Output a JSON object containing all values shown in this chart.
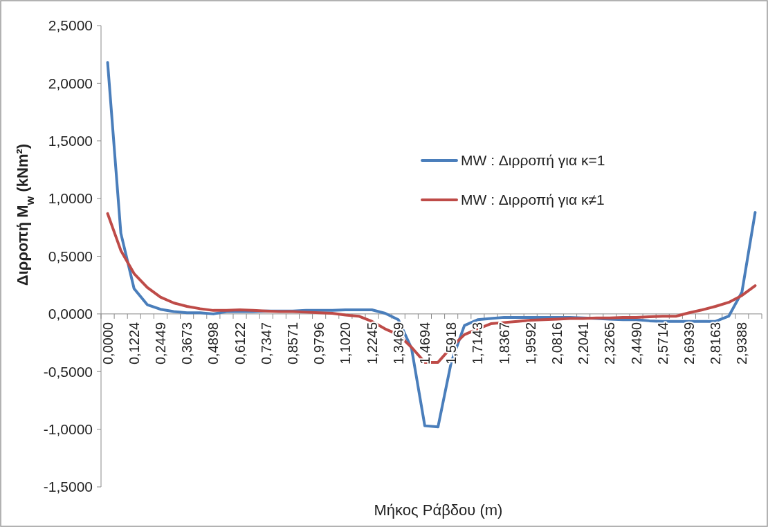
{
  "chart_data": {
    "type": "line",
    "xlabel": "Μήκος Ράβδου (m)",
    "ylabel": "Διρροπή M$_{w}$ (kNm²)",
    "categories": [
      "0,0000",
      null,
      "0,1224",
      null,
      "0,2449",
      null,
      "0,3673",
      null,
      "0,4898",
      null,
      "0,6122",
      null,
      "0,7347",
      null,
      "0,8571",
      null,
      "0,9796",
      null,
      "1,1020",
      null,
      "1,2245",
      null,
      "1,3469",
      null,
      "1,4694",
      null,
      "1,5918",
      null,
      "1,7143",
      null,
      "1,8367",
      null,
      "1,9592",
      null,
      "2,0816",
      null,
      "2,2041",
      null,
      "2,3265",
      null,
      "2,4490",
      null,
      "2,5714",
      null,
      "2,6939",
      null,
      "2,8163",
      null,
      "2,9388",
      null
    ],
    "series": [
      {
        "name": "MW : Διρροπή για κ=1",
        "color": "#4a7ebb",
        "values": [
          2.18,
          0.7,
          0.22,
          0.08,
          0.04,
          0.02,
          0.01,
          0.01,
          0.0,
          0.02,
          0.02,
          0.02,
          0.025,
          0.025,
          0.025,
          0.03,
          0.03,
          0.03,
          0.035,
          0.035,
          0.035,
          0.005,
          -0.05,
          -0.3,
          -0.97,
          -0.98,
          -0.42,
          -0.1,
          -0.05,
          -0.04,
          -0.03,
          -0.03,
          -0.03,
          -0.03,
          -0.03,
          -0.03,
          -0.035,
          -0.04,
          -0.045,
          -0.05,
          -0.05,
          -0.06,
          -0.065,
          -0.065,
          -0.065,
          -0.065,
          -0.065,
          -0.02,
          0.19,
          0.88
        ]
      },
      {
        "name": "MW : Διρροπή για κ≠1",
        "color": "#be4b48",
        "values": [
          0.87,
          0.55,
          0.35,
          0.23,
          0.145,
          0.095,
          0.065,
          0.045,
          0.03,
          0.03,
          0.035,
          0.03,
          0.025,
          0.02,
          0.02,
          0.015,
          0.01,
          0.005,
          -0.01,
          -0.02,
          -0.065,
          -0.13,
          -0.18,
          -0.29,
          -0.42,
          -0.42,
          -0.29,
          -0.18,
          -0.13,
          -0.085,
          -0.075,
          -0.065,
          -0.055,
          -0.05,
          -0.045,
          -0.04,
          -0.04,
          -0.035,
          -0.035,
          -0.03,
          -0.03,
          -0.025,
          -0.02,
          -0.02,
          0.01,
          0.035,
          0.065,
          0.1,
          0.16,
          0.245
        ]
      }
    ],
    "ylim": [
      -1.5,
      2.5
    ],
    "yticks": [
      {
        "value": -1.5,
        "label": "-1,5000"
      },
      {
        "value": -1,
        "label": "-1,0000"
      },
      {
        "value": -0.5,
        "label": "-0,5000"
      },
      {
        "value": 0,
        "label": "0,0000"
      },
      {
        "value": 0.5,
        "label": "0,5000"
      },
      {
        "value": 1,
        "label": "1,0000"
      },
      {
        "value": 1.5,
        "label": "1,5000"
      },
      {
        "value": 2,
        "label": "2,0000"
      },
      {
        "value": 2.5,
        "label": "2,5000"
      }
    ],
    "grid": false,
    "legend": "center right",
    "marker": "none",
    "line_style": "solid"
  }
}
